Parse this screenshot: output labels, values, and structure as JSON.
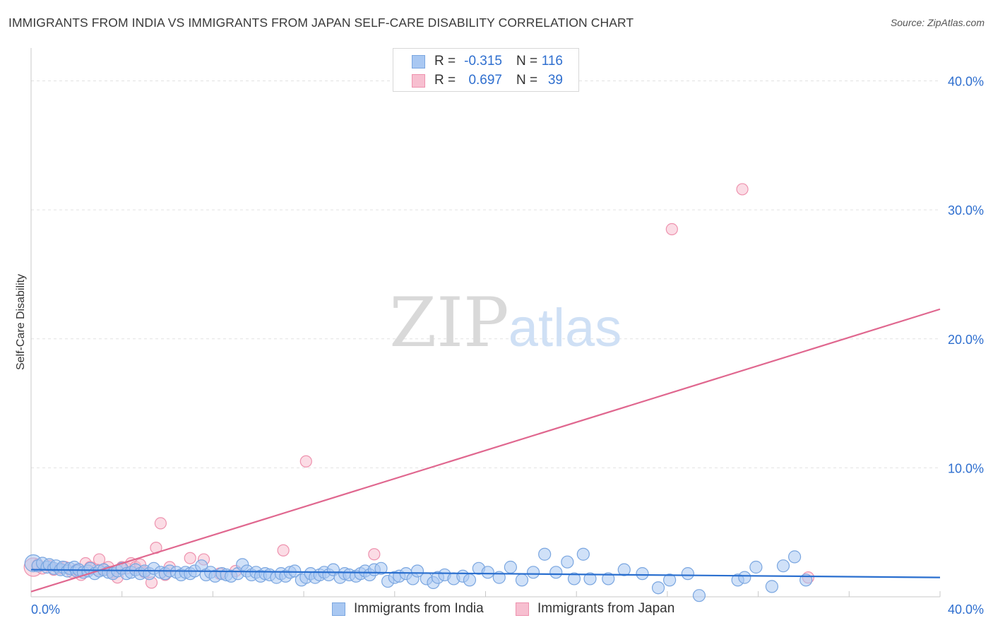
{
  "header": {
    "title": "IMMIGRANTS FROM INDIA VS IMMIGRANTS FROM JAPAN SELF-CARE DISABILITY CORRELATION CHART",
    "source": "Source: ZipAtlas.com"
  },
  "watermark": {
    "zip": "ZIP",
    "atlas": "atlas"
  },
  "legend": {
    "india": {
      "r_label": "R =",
      "r_value": "-0.315",
      "n_label": "N =",
      "n_value": "116"
    },
    "japan": {
      "r_label": "R =",
      "r_value": "0.697",
      "n_label": "N =",
      "n_value": "39"
    }
  },
  "colors": {
    "india_fill": "#a9c8f2",
    "india_stroke": "#7aa6e0",
    "india_line": "#2a6fcf",
    "japan_fill": "#f7bfd0",
    "japan_stroke": "#ee92ae",
    "japan_line": "#e0678f",
    "tick_text": "#2f6fcf",
    "grid": "#e2e2e2"
  },
  "chart_data": {
    "type": "scatter",
    "title": "IMMIGRANTS FROM INDIA VS IMMIGRANTS FROM JAPAN SELF-CARE DISABILITY CORRELATION CHART",
    "xlabel": "",
    "ylabel": "Self-Care Disability",
    "xlim": [
      0,
      40
    ],
    "ylim": [
      0,
      42
    ],
    "x_tick_labels": [
      "0.0%",
      "40.0%"
    ],
    "y_ticks": [
      10,
      20,
      30,
      40
    ],
    "y_tick_labels": [
      "10.0%",
      "20.0%",
      "30.0%",
      "40.0%"
    ],
    "grid": true,
    "series": [
      {
        "name": "Immigrants from India",
        "r": -0.315,
        "n": 116,
        "trend": {
          "x": [
            0,
            40
          ],
          "y": [
            2.1,
            1.5
          ]
        },
        "points": [
          [
            0.1,
            2.6
          ],
          [
            0.3,
            2.4
          ],
          [
            0.5,
            2.6
          ],
          [
            0.7,
            2.3
          ],
          [
            0.8,
            2.5
          ],
          [
            1.0,
            2.2
          ],
          [
            1.1,
            2.4
          ],
          [
            1.3,
            2.1
          ],
          [
            1.4,
            2.3
          ],
          [
            1.6,
            2.0
          ],
          [
            1.7,
            2.2
          ],
          [
            1.9,
            2.3
          ],
          [
            2.0,
            2.0
          ],
          [
            2.1,
            2.1
          ],
          [
            2.3,
            1.9
          ],
          [
            2.5,
            2.0
          ],
          [
            2.6,
            2.2
          ],
          [
            2.8,
            1.8
          ],
          [
            3.0,
            2.0
          ],
          [
            3.2,
            2.1
          ],
          [
            3.4,
            1.9
          ],
          [
            3.6,
            1.8
          ],
          [
            3.8,
            2.0
          ],
          [
            4.0,
            2.2
          ],
          [
            4.2,
            1.8
          ],
          [
            4.4,
            1.9
          ],
          [
            4.6,
            2.1
          ],
          [
            4.8,
            1.8
          ],
          [
            5.0,
            2.0
          ],
          [
            5.2,
            1.8
          ],
          [
            5.4,
            2.2
          ],
          [
            5.7,
            1.9
          ],
          [
            5.9,
            1.8
          ],
          [
            6.1,
            2.0
          ],
          [
            6.4,
            1.9
          ],
          [
            6.6,
            1.7
          ],
          [
            6.8,
            1.9
          ],
          [
            7.0,
            1.8
          ],
          [
            7.2,
            2.0
          ],
          [
            7.5,
            2.4
          ],
          [
            7.7,
            1.7
          ],
          [
            7.9,
            1.9
          ],
          [
            8.1,
            1.6
          ],
          [
            8.4,
            1.8
          ],
          [
            8.6,
            1.7
          ],
          [
            8.8,
            1.6
          ],
          [
            9.1,
            1.8
          ],
          [
            9.3,
            2.5
          ],
          [
            9.5,
            2.0
          ],
          [
            9.7,
            1.7
          ],
          [
            9.9,
            1.9
          ],
          [
            10.1,
            1.6
          ],
          [
            10.3,
            1.8
          ],
          [
            10.5,
            1.7
          ],
          [
            10.8,
            1.5
          ],
          [
            11.0,
            1.8
          ],
          [
            11.2,
            1.6
          ],
          [
            11.4,
            1.9
          ],
          [
            11.6,
            2.0
          ],
          [
            11.9,
            1.3
          ],
          [
            12.1,
            1.5
          ],
          [
            12.3,
            1.8
          ],
          [
            12.5,
            1.5
          ],
          [
            12.7,
            1.7
          ],
          [
            12.9,
            1.9
          ],
          [
            13.1,
            1.7
          ],
          [
            13.3,
            2.1
          ],
          [
            13.6,
            1.5
          ],
          [
            13.8,
            1.8
          ],
          [
            14.0,
            1.7
          ],
          [
            14.3,
            1.6
          ],
          [
            14.5,
            1.8
          ],
          [
            14.7,
            2.0
          ],
          [
            14.9,
            1.7
          ],
          [
            15.1,
            2.1
          ],
          [
            15.4,
            2.2
          ],
          [
            15.7,
            1.2
          ],
          [
            16.0,
            1.5
          ],
          [
            16.2,
            1.6
          ],
          [
            16.5,
            1.8
          ],
          [
            16.8,
            1.4
          ],
          [
            17.0,
            2.0
          ],
          [
            17.4,
            1.4
          ],
          [
            17.7,
            1.1
          ],
          [
            17.9,
            1.5
          ],
          [
            18.2,
            1.7
          ],
          [
            18.6,
            1.4
          ],
          [
            19.0,
            1.6
          ],
          [
            19.3,
            1.3
          ],
          [
            19.7,
            2.2
          ],
          [
            20.1,
            1.9
          ],
          [
            20.6,
            1.5
          ],
          [
            21.1,
            2.3
          ],
          [
            21.6,
            1.3
          ],
          [
            22.1,
            1.9
          ],
          [
            22.6,
            3.3
          ],
          [
            23.1,
            1.9
          ],
          [
            23.6,
            2.7
          ],
          [
            23.9,
            1.4
          ],
          [
            24.3,
            3.3
          ],
          [
            24.6,
            1.4
          ],
          [
            25.4,
            1.4
          ],
          [
            26.1,
            2.1
          ],
          [
            26.9,
            1.8
          ],
          [
            27.6,
            0.7
          ],
          [
            28.1,
            1.3
          ],
          [
            28.9,
            1.8
          ],
          [
            29.4,
            0.1
          ],
          [
            31.1,
            1.3
          ],
          [
            31.4,
            1.5
          ],
          [
            31.9,
            2.3
          ],
          [
            32.6,
            0.8
          ],
          [
            33.1,
            2.4
          ],
          [
            33.6,
            3.1
          ],
          [
            34.1,
            1.3
          ]
        ]
      },
      {
        "name": "Immigrants from Japan",
        "r": 0.697,
        "n": 39,
        "trend": {
          "x": [
            0,
            40
          ],
          "y": [
            0.4,
            22.3
          ]
        },
        "points": [
          [
            0.1,
            2.3
          ],
          [
            0.3,
            2.5
          ],
          [
            0.5,
            2.2
          ],
          [
            0.8,
            2.4
          ],
          [
            1.0,
            2.1
          ],
          [
            1.3,
            2.2
          ],
          [
            1.5,
            2.3
          ],
          [
            1.8,
            1.9
          ],
          [
            2.0,
            2.1
          ],
          [
            2.2,
            1.7
          ],
          [
            2.4,
            2.6
          ],
          [
            2.6,
            2.3
          ],
          [
            2.9,
            2.1
          ],
          [
            3.0,
            2.9
          ],
          [
            3.2,
            2.1
          ],
          [
            3.4,
            2.3
          ],
          [
            3.6,
            1.9
          ],
          [
            3.8,
            1.5
          ],
          [
            4.0,
            2.3
          ],
          [
            4.2,
            2.2
          ],
          [
            4.4,
            2.6
          ],
          [
            4.6,
            2.3
          ],
          [
            4.8,
            2.5
          ],
          [
            5.0,
            1.9
          ],
          [
            5.3,
            1.1
          ],
          [
            5.5,
            3.8
          ],
          [
            5.7,
            5.7
          ],
          [
            5.9,
            1.7
          ],
          [
            6.1,
            2.3
          ],
          [
            7.0,
            3.0
          ],
          [
            7.6,
            2.9
          ],
          [
            8.3,
            1.8
          ],
          [
            9.0,
            2.0
          ],
          [
            11.1,
            3.6
          ],
          [
            12.1,
            10.5
          ],
          [
            15.1,
            3.3
          ],
          [
            28.2,
            28.5
          ],
          [
            31.3,
            31.6
          ],
          [
            34.2,
            1.5
          ]
        ]
      }
    ]
  },
  "bottom_legend": {
    "india_label": "Immigrants from India",
    "japan_label": "Immigrants from Japan"
  }
}
